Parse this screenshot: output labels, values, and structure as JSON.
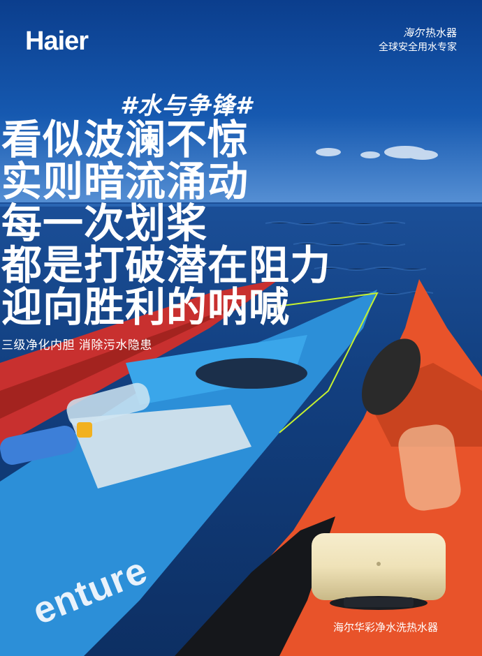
{
  "brand": {
    "logo_text": "Haier",
    "product_line": "热水器",
    "product_line_script": "海尔",
    "slogan": "全球安全用水专家"
  },
  "hashtag": "#水与争锋#",
  "headline": {
    "lines": [
      "看似波澜不惊",
      "实则暗流涌动",
      "每一次划桨",
      "都是打破潜在阻力",
      "迎向胜利的呐喊"
    ]
  },
  "subtitle": "三级净化内胆 消除污水隐患",
  "product": {
    "name": "海尔华彩净水洗热水器"
  },
  "kayak_print": "enture",
  "colors": {
    "sky_top": "#0b3e8d",
    "sea": "#123f7f",
    "kayak_orange": "#e8532a",
    "kayak_blue": "#2c8fd8",
    "kayak_red": "#c8302f",
    "heater_gold": "#efe2b8"
  }
}
